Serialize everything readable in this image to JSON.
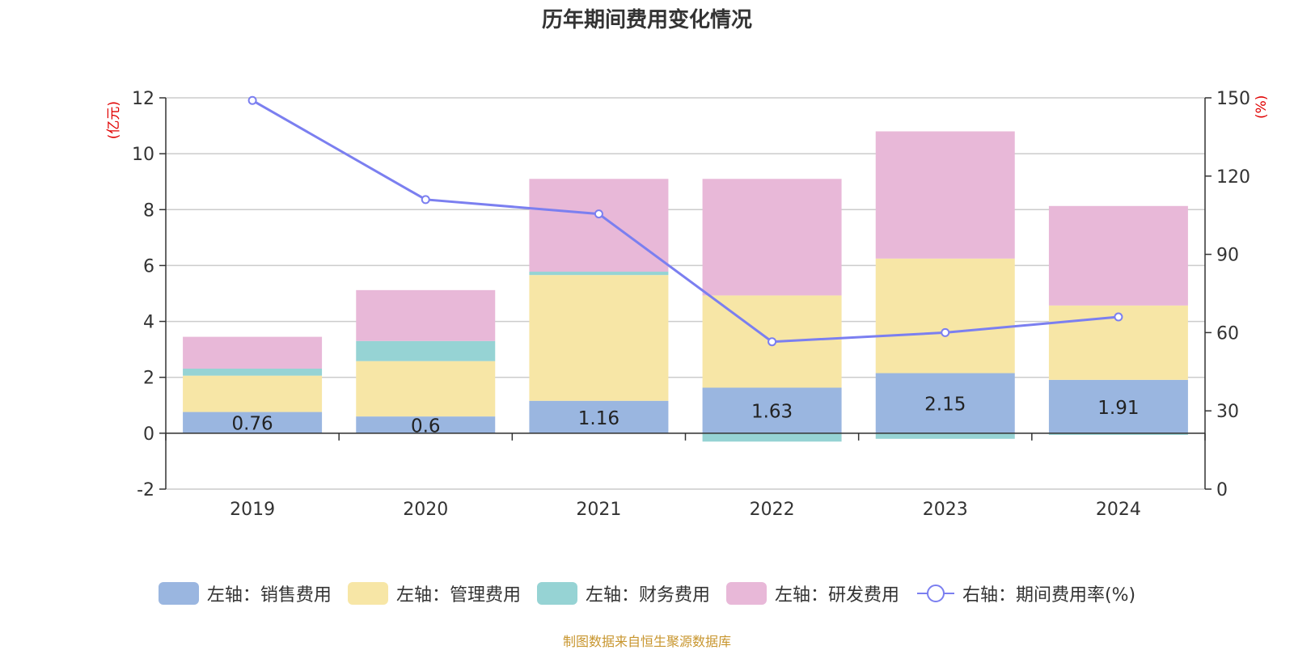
{
  "chart_data": {
    "type": "bar",
    "title": "历年期间费用变化情况",
    "categories": [
      "2019",
      "2020",
      "2021",
      "2022",
      "2023",
      "2024"
    ],
    "y_left_label": "(亿元)",
    "y_right_label": "(%)",
    "y_left_lim": [
      -2,
      12
    ],
    "y_left_ticks": [
      "-2",
      "0",
      "2",
      "4",
      "6",
      "8",
      "10",
      "12"
    ],
    "y_right_lim": [
      0,
      150
    ],
    "y_right_ticks": [
      "0",
      "30",
      "60",
      "90",
      "120",
      "150"
    ],
    "grid": true,
    "legend_position": "bottom",
    "series": [
      {
        "name": "左轴：销售费用",
        "axis": "left",
        "color": "#9ab6e0",
        "values": [
          0.76,
          0.6,
          1.16,
          1.63,
          2.15,
          1.91
        ],
        "labels": [
          "0.76",
          "0.6",
          "1.16",
          "1.63",
          "2.15",
          "1.91"
        ]
      },
      {
        "name": "左轴：管理费用",
        "axis": "left",
        "color": "#f7e6a6",
        "values": [
          1.3,
          1.98,
          4.5,
          3.3,
          4.1,
          2.66
        ]
      },
      {
        "name": "左轴：财务费用",
        "axis": "left",
        "color": "#96d3d4",
        "values": [
          0.25,
          0.72,
          0.12,
          -0.3,
          -0.2,
          -0.06
        ]
      },
      {
        "name": "左轴：研发费用",
        "axis": "left",
        "color": "#e8b8d8",
        "values": [
          1.14,
          1.82,
          3.32,
          4.17,
          4.55,
          3.56
        ]
      },
      {
        "name": "右轴：期间费用率(%)",
        "axis": "right",
        "type": "line",
        "color": "#7b7ff0",
        "values": [
          149,
          111,
          105.5,
          56.5,
          60,
          66
        ]
      }
    ]
  },
  "source_note": "制图数据来自恒生聚源数据库"
}
